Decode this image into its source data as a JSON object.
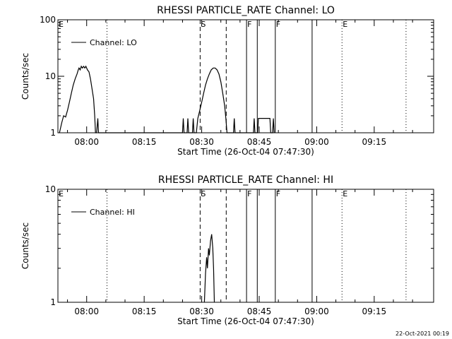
{
  "charts": [
    {
      "type": "line",
      "title": "RHESSI PARTICLE_RATE Channel: LO",
      "xlabel": "Start Time (26-Oct-04 07:47:30)",
      "ylabel": "Counts/sec",
      "y_scale": "log",
      "ylim": [
        1,
        100
      ],
      "y_ticks": [
        {
          "value": 1,
          "label": "1"
        },
        {
          "value": 10,
          "label": "10"
        },
        {
          "value": 100,
          "label": "100"
        }
      ],
      "xlim_minutes": [
        -7.5,
        90.5
      ],
      "x_ticks": [
        {
          "minute": 0,
          "label": "08:00"
        },
        {
          "minute": 15,
          "label": "08:15"
        },
        {
          "minute": 30,
          "label": "08:30"
        },
        {
          "minute": 45,
          "label": "08:45"
        },
        {
          "minute": 60,
          "label": "09:00"
        },
        {
          "minute": 75,
          "label": "09:15"
        }
      ],
      "legend": {
        "label": "Channel: LO",
        "placement": "top-left"
      },
      "markers": [
        {
          "minute": -7.5,
          "style": "none",
          "label": "E"
        },
        {
          "minute": 5.3,
          "style": "dotted",
          "label": ""
        },
        {
          "minute": 29.6,
          "style": "dashed",
          "label": "S"
        },
        {
          "minute": 36.4,
          "style": "dashed",
          "label": ""
        },
        {
          "minute": 41.7,
          "style": "solid",
          "label": "F"
        },
        {
          "minute": 44.5,
          "style": "solid",
          "label": ""
        },
        {
          "minute": 49.2,
          "style": "solid",
          "label": "F"
        },
        {
          "minute": 58.8,
          "style": "solid",
          "label": ""
        },
        {
          "minute": 66.6,
          "style": "dotted",
          "label": "E"
        },
        {
          "minute": 83.3,
          "style": "dotted",
          "label": ""
        }
      ],
      "series": [
        {
          "name": "Channel: LO",
          "points": [
            [
              -7.1,
              1
            ],
            [
              -6.5,
              1.5
            ],
            [
              -6,
              2
            ],
            [
              -5.5,
              1.9
            ],
            [
              -5,
              2.5
            ],
            [
              -4.5,
              3.5
            ],
            [
              -4,
              5
            ],
            [
              -3.5,
              7
            ],
            [
              -3,
              9
            ],
            [
              -2.5,
              11
            ],
            [
              -2.2,
              13
            ],
            [
              -2,
              14
            ],
            [
              -1.7,
              13
            ],
            [
              -1.4,
              15
            ],
            [
              -1.1,
              14
            ],
            [
              -0.8,
              15
            ],
            [
              -0.5,
              14
            ],
            [
              -0.2,
              15
            ],
            [
              0.2,
              13
            ],
            [
              0.6,
              12
            ],
            [
              1,
              9
            ],
            [
              1.4,
              6
            ],
            [
              1.8,
              4
            ],
            [
              2.1,
              2
            ],
            [
              2.3,
              1
            ],
            [
              2.6,
              1
            ],
            [
              2.9,
              1.8
            ],
            [
              3.1,
              1
            ],
            [
              25,
              1
            ],
            [
              25.2,
              1.8
            ],
            [
              25.4,
              1
            ],
            [
              26.2,
              1
            ],
            [
              26.4,
              1.8
            ],
            [
              26.6,
              1
            ],
            [
              27.6,
              1
            ],
            [
              27.8,
              1.8
            ],
            [
              28,
              1
            ],
            [
              28.6,
              1
            ],
            [
              29,
              1.8
            ],
            [
              29.5,
              2.5
            ],
            [
              30,
              3.5
            ],
            [
              30.5,
              5
            ],
            [
              31,
              7
            ],
            [
              31.5,
              9
            ],
            [
              32,
              11
            ],
            [
              32.5,
              13
            ],
            [
              33,
              14
            ],
            [
              33.5,
              14
            ],
            [
              34,
              13
            ],
            [
              34.5,
              11
            ],
            [
              35,
              8
            ],
            [
              35.5,
              5
            ],
            [
              36,
              3
            ],
            [
              36.3,
              1.8
            ],
            [
              36.6,
              1
            ],
            [
              38.3,
              1
            ],
            [
              38.5,
              1.8
            ],
            [
              38.7,
              1
            ],
            [
              43.5,
              1
            ],
            [
              43.7,
              1.8
            ],
            [
              43.9,
              1
            ],
            [
              44.6,
              1
            ],
            [
              44.8,
              1.8
            ],
            [
              45.5,
              1.8
            ],
            [
              46.2,
              1.8
            ],
            [
              47,
              1.8
            ],
            [
              47.8,
              1.8
            ],
            [
              48,
              1
            ],
            [
              48.5,
              1
            ],
            [
              48.7,
              1.8
            ],
            [
              48.9,
              1
            ]
          ]
        }
      ]
    },
    {
      "type": "line",
      "title": "RHESSI PARTICLE_RATE Channel: HI",
      "xlabel": "Start Time (26-Oct-04 07:47:30)",
      "ylabel": "Counts/sec",
      "y_scale": "log",
      "ylim": [
        1,
        10
      ],
      "y_ticks": [
        {
          "value": 1,
          "label": "1"
        },
        {
          "value": 10,
          "label": "10"
        }
      ],
      "xlim_minutes": [
        -7.5,
        90.5
      ],
      "x_ticks": [
        {
          "minute": 0,
          "label": "08:00"
        },
        {
          "minute": 15,
          "label": "08:15"
        },
        {
          "minute": 30,
          "label": "08:30"
        },
        {
          "minute": 45,
          "label": "08:45"
        },
        {
          "minute": 60,
          "label": "09:00"
        },
        {
          "minute": 75,
          "label": "09:15"
        }
      ],
      "legend": {
        "label": "Channel: HI",
        "placement": "top-left"
      },
      "markers": [
        {
          "minute": -7.5,
          "style": "none",
          "label": "E"
        },
        {
          "minute": 5.3,
          "style": "dotted",
          "label": ""
        },
        {
          "minute": 29.6,
          "style": "dashed",
          "label": "S"
        },
        {
          "minute": 36.4,
          "style": "dashed",
          "label": ""
        },
        {
          "minute": 41.7,
          "style": "solid",
          "label": "F"
        },
        {
          "minute": 44.5,
          "style": "solid",
          "label": ""
        },
        {
          "minute": 49.2,
          "style": "solid",
          "label": "F"
        },
        {
          "minute": 58.8,
          "style": "solid",
          "label": ""
        },
        {
          "minute": 66.6,
          "style": "dotted",
          "label": "E"
        },
        {
          "minute": 83.3,
          "style": "dotted",
          "label": ""
        }
      ],
      "series": [
        {
          "name": "Channel: HI",
          "points": [
            [
              30.7,
              1
            ],
            [
              31,
              1.8
            ],
            [
              31.3,
              2.5
            ],
            [
              31.5,
              2
            ],
            [
              31.8,
              3
            ],
            [
              32,
              2.6
            ],
            [
              32.3,
              3.5
            ],
            [
              32.6,
              4
            ],
            [
              32.9,
              3
            ],
            [
              33.1,
              2
            ],
            [
              33.3,
              1
            ]
          ]
        }
      ]
    }
  ],
  "footer": {
    "timestamp": "22-Oct-2021 00:19"
  }
}
